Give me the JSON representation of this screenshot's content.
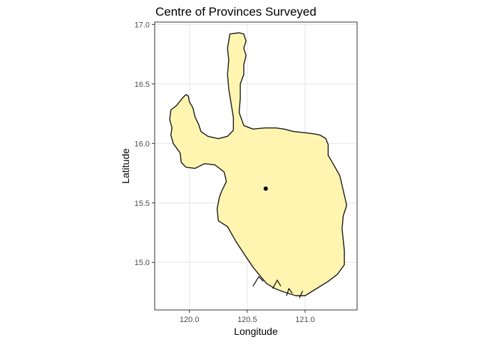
{
  "chart_data": {
    "type": "map",
    "title": "Centre of Provinces Surveyed",
    "xlabel": "Longitude",
    "ylabel": "Latitude",
    "xlim": [
      119.7,
      121.45
    ],
    "ylim": [
      14.6,
      17.02
    ],
    "x_ticks": [
      120.0,
      120.5,
      121.0
    ],
    "x_tick_labels": [
      "120.0",
      "120.5",
      "121.0"
    ],
    "y_ticks": [
      15.0,
      15.5,
      16.0,
      16.5,
      17.0
    ],
    "y_tick_labels": [
      "15.0",
      "15.5",
      "16.0",
      "16.5",
      "17.0"
    ],
    "grid": true,
    "region_fill": "#FFF5B1",
    "region_outline": [
      [
        120.35,
        16.92
      ],
      [
        120.43,
        16.93
      ],
      [
        120.47,
        16.92
      ],
      [
        120.49,
        16.86
      ],
      [
        120.47,
        16.8
      ],
      [
        120.49,
        16.74
      ],
      [
        120.47,
        16.66
      ],
      [
        120.47,
        16.58
      ],
      [
        120.44,
        16.5
      ],
      [
        120.44,
        16.38
      ],
      [
        120.43,
        16.26
      ],
      [
        120.47,
        16.15
      ],
      [
        120.55,
        16.12
      ],
      [
        120.65,
        16.13
      ],
      [
        120.75,
        16.13
      ],
      [
        120.82,
        16.12
      ],
      [
        120.9,
        16.1
      ],
      [
        121.0,
        16.09
      ],
      [
        121.08,
        16.08
      ],
      [
        121.13,
        16.07
      ],
      [
        121.18,
        16.04
      ],
      [
        121.2,
        15.99
      ],
      [
        121.2,
        15.9
      ],
      [
        121.23,
        15.85
      ],
      [
        121.3,
        15.73
      ],
      [
        121.36,
        15.48
      ],
      [
        121.33,
        15.39
      ],
      [
        121.32,
        15.28
      ],
      [
        121.34,
        15.1
      ],
      [
        121.34,
        14.98
      ],
      [
        121.28,
        14.9
      ],
      [
        121.2,
        14.84
      ],
      [
        121.1,
        14.78
      ],
      [
        121.0,
        14.72
      ],
      [
        120.92,
        14.72
      ],
      [
        120.82,
        14.75
      ],
      [
        120.74,
        14.78
      ],
      [
        120.67,
        14.82
      ],
      [
        120.6,
        14.9
      ],
      [
        120.55,
        14.96
      ],
      [
        120.48,
        15.06
      ],
      [
        120.4,
        15.18
      ],
      [
        120.33,
        15.3
      ],
      [
        120.25,
        15.35
      ],
      [
        120.24,
        15.45
      ],
      [
        120.26,
        15.55
      ],
      [
        120.28,
        15.6
      ],
      [
        120.32,
        15.68
      ],
      [
        120.3,
        15.76
      ],
      [
        120.22,
        15.82
      ],
      [
        120.13,
        15.83
      ],
      [
        120.05,
        15.79
      ],
      [
        119.97,
        15.8
      ],
      [
        119.93,
        15.84
      ],
      [
        119.92,
        15.92
      ],
      [
        119.86,
        16.0
      ],
      [
        119.84,
        16.07
      ],
      [
        119.85,
        16.13
      ],
      [
        119.83,
        16.2
      ],
      [
        119.84,
        16.28
      ],
      [
        119.89,
        16.32
      ],
      [
        119.94,
        16.38
      ],
      [
        119.97,
        16.41
      ],
      [
        119.99,
        16.4
      ],
      [
        120.0,
        16.35
      ],
      [
        120.03,
        16.3
      ],
      [
        120.05,
        16.22
      ],
      [
        120.08,
        16.16
      ],
      [
        120.1,
        16.1
      ],
      [
        120.16,
        16.06
      ],
      [
        120.25,
        16.04
      ],
      [
        120.33,
        16.06
      ],
      [
        120.38,
        16.11
      ],
      [
        120.38,
        16.22
      ],
      [
        120.36,
        16.34
      ],
      [
        120.34,
        16.46
      ],
      [
        120.33,
        16.58
      ],
      [
        120.34,
        16.7
      ],
      [
        120.33,
        16.8
      ]
    ],
    "coastline_notches": [
      [
        [
          120.55,
          14.8
        ],
        [
          120.6,
          14.88
        ],
        [
          120.64,
          14.84
        ]
      ],
      [
        [
          120.72,
          14.78
        ],
        [
          120.76,
          14.85
        ],
        [
          120.79,
          14.8
        ]
      ],
      [
        [
          120.84,
          14.72
        ],
        [
          120.86,
          14.78
        ],
        [
          120.89,
          14.74
        ]
      ],
      [
        [
          120.95,
          14.7
        ],
        [
          120.98,
          14.76
        ]
      ]
    ],
    "points": [
      {
        "x": 120.66,
        "y": 15.62
      }
    ]
  }
}
